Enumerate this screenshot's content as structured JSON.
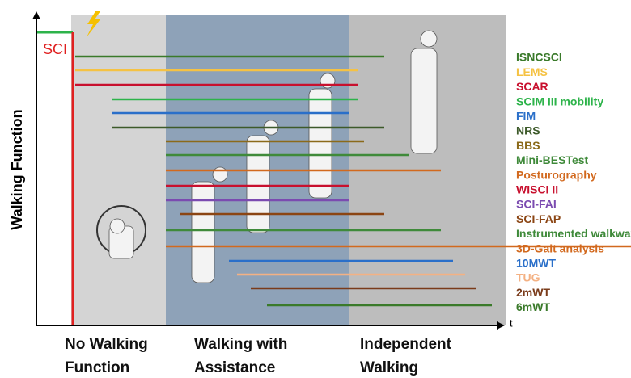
{
  "sci_label": "SCI",
  "y_axis_label": "Walking Function",
  "x_axis_label": "t",
  "outcomes": [
    "ISNCSCI",
    "LEMS",
    "SCAR",
    "SCIM III mobility",
    "FIM",
    "NRS",
    "BBS",
    "Mini-BESTest",
    "Posturography",
    "WISCI II",
    "SCI-FAI",
    "SCI-FAP",
    "Instrumented walkway",
    "3D-Gait analysis",
    "10MWT",
    "TUG",
    "2mWT",
    "6mWT"
  ],
  "phases": [
    [
      "No Walking",
      "Function"
    ],
    [
      "Walking with",
      "Assistance"
    ],
    [
      "Independent",
      "Walking"
    ]
  ]
}
